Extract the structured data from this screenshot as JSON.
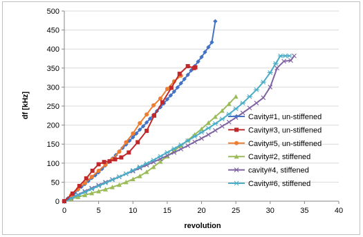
{
  "chart_data": {
    "type": "line",
    "title": "",
    "xlabel": "revolution",
    "ylabel": "df [kHz]",
    "xlim": [
      0,
      40
    ],
    "ylim": [
      0,
      500
    ],
    "xticks": [
      0,
      5,
      10,
      15,
      20,
      25,
      30,
      35,
      40
    ],
    "yticks": [
      0,
      50,
      100,
      150,
      200,
      250,
      300,
      350,
      400,
      450,
      500
    ],
    "grid": "horizontal",
    "legend_position": "right",
    "series": [
      {
        "name": "Cavity#1, un-stiffened",
        "color": "#4472c4",
        "marker": "diamond",
        "x": [
          0,
          0.5,
          1.0,
          1.5,
          2.0,
          2.5,
          3.0,
          3.5,
          4.0,
          4.5,
          5.0,
          5.5,
          6.0,
          6.5,
          7.0,
          7.5,
          8.0,
          8.5,
          9.0,
          9.5,
          10.0,
          10.5,
          11.0,
          11.5,
          12.0,
          12.5,
          13.0,
          13.5,
          14.0,
          14.5,
          15.0,
          15.5,
          16.0,
          16.5,
          17.0,
          17.5,
          18.0,
          18.5,
          19.0,
          19.5,
          20.0,
          20.5,
          21.0,
          21.5,
          22.0
        ],
        "y": [
          0,
          7,
          15,
          22,
          30,
          38,
          45,
          53,
          61,
          68,
          76,
          85,
          94,
          103,
          112,
          121,
          131,
          140,
          149,
          159,
          168,
          178,
          188,
          197,
          207,
          217,
          227,
          237,
          247,
          257,
          268,
          278,
          288,
          299,
          310,
          321,
          332,
          344,
          355,
          367,
          379,
          392,
          405,
          418,
          473
        ]
      },
      {
        "name": "Cavity#3, un-stiffened",
        "color": "#c0292b",
        "marker": "square",
        "x": [
          0,
          1.2,
          2.2,
          3.2,
          4.1,
          5.0,
          5.8,
          6.6,
          7.4,
          8.3,
          9.4,
          10.7,
          12.0,
          13.1,
          14.3,
          15.6,
          16.8,
          18.0,
          18.9,
          19.1
        ],
        "y": [
          0,
          20,
          40,
          60,
          80,
          97,
          103,
          105,
          110,
          115,
          128,
          155,
          185,
          225,
          260,
          298,
          335,
          355,
          350,
          352
        ]
      },
      {
        "name": "Cavity#5, un-stiffened",
        "color": "#ed7d31",
        "marker": "circle",
        "x": [
          0,
          1.0,
          2.0,
          3.0,
          4.0,
          5.0,
          6.0,
          7.0,
          8.0,
          9.0,
          10.0,
          11.0,
          12.0,
          13.0,
          14.0,
          15.0,
          16.0,
          17.0
        ],
        "y": [
          0,
          16,
          32,
          48,
          64,
          80,
          96,
          110,
          130,
          155,
          178,
          205,
          228,
          252,
          270,
          295,
          315,
          330
        ]
      },
      {
        "name": "Cavity#2, stiffened",
        "color": "#9bbb59",
        "marker": "triangle",
        "x": [
          0,
          1,
          2,
          3,
          4,
          5,
          6,
          7,
          8,
          9,
          10,
          11,
          12,
          13,
          14,
          15,
          16,
          17,
          18,
          19,
          20,
          21,
          22,
          23,
          24,
          25
        ],
        "y": [
          0,
          6,
          11,
          16,
          21,
          26,
          31,
          37,
          43,
          50,
          58,
          66,
          77,
          90,
          104,
          118,
          132,
          146,
          160,
          175,
          190,
          206,
          222,
          238,
          256,
          275
        ]
      },
      {
        "name": "cavity#4, stiffened",
        "color": "#8064a2",
        "marker": "x",
        "x": [
          0,
          1,
          2,
          3,
          4,
          5,
          6,
          7,
          8,
          9,
          10,
          11,
          12,
          13,
          14,
          15,
          16,
          17,
          18,
          19,
          20,
          21,
          22,
          23,
          24,
          25,
          26,
          27,
          28,
          29,
          30,
          31,
          32,
          33,
          33.5
        ],
        "y": [
          0,
          9,
          17,
          26,
          34,
          42,
          50,
          57,
          64,
          72,
          79,
          87,
          95,
          103,
          111,
          120,
          128,
          137,
          146,
          156,
          165,
          175,
          186,
          197,
          208,
          220,
          232,
          245,
          258,
          272,
          300,
          350,
          368,
          370,
          382
        ]
      },
      {
        "name": "Cavity#6, stiffened",
        "color": "#4bacc6",
        "marker": "star",
        "x": [
          0,
          1,
          2,
          3,
          4,
          5,
          6,
          7,
          8,
          9,
          10,
          11,
          12,
          13,
          14,
          15,
          16,
          17,
          18,
          19,
          20,
          21,
          22,
          23,
          24,
          25,
          26,
          27,
          28,
          29,
          30,
          30.8,
          31.5,
          32.2,
          32.8
        ],
        "y": [
          0,
          8,
          16,
          24,
          32,
          40,
          48,
          56,
          64,
          72,
          81,
          90,
          99,
          108,
          118,
          128,
          138,
          148,
          159,
          170,
          181,
          192,
          204,
          216,
          229,
          243,
          258,
          275,
          293,
          313,
          338,
          362,
          382,
          382,
          382
        ]
      }
    ]
  }
}
